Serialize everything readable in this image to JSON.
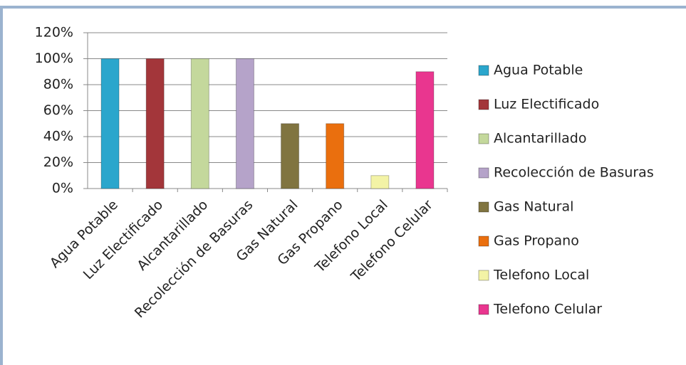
{
  "chart_data": {
    "type": "bar",
    "categories": [
      "Agua Potable",
      "Luz Electificado",
      "Alcantarillado",
      "Recolección de Basuras",
      "Gas Natural",
      "Gas Propano",
      "Telefono Local",
      "Telefono Celular"
    ],
    "values": [
      100,
      100,
      100,
      100,
      50,
      50,
      10,
      90
    ],
    "colors": [
      "#2ba6cc",
      "#a3363a",
      "#c4d89c",
      "#b5a3c9",
      "#807440",
      "#ea6f0e",
      "#f3f3a6",
      "#e9368f"
    ],
    "ylim": [
      0,
      120
    ],
    "yticks": [
      {
        "value": 0,
        "label": "0%"
      },
      {
        "value": 20,
        "label": "20%"
      },
      {
        "value": 40,
        "label": "40%"
      },
      {
        "value": 60,
        "label": "60%"
      },
      {
        "value": 80,
        "label": "80%"
      },
      {
        "value": 100,
        "label": "100%"
      },
      {
        "value": 120,
        "label": "120%"
      }
    ],
    "grid": true,
    "legend": "right"
  }
}
